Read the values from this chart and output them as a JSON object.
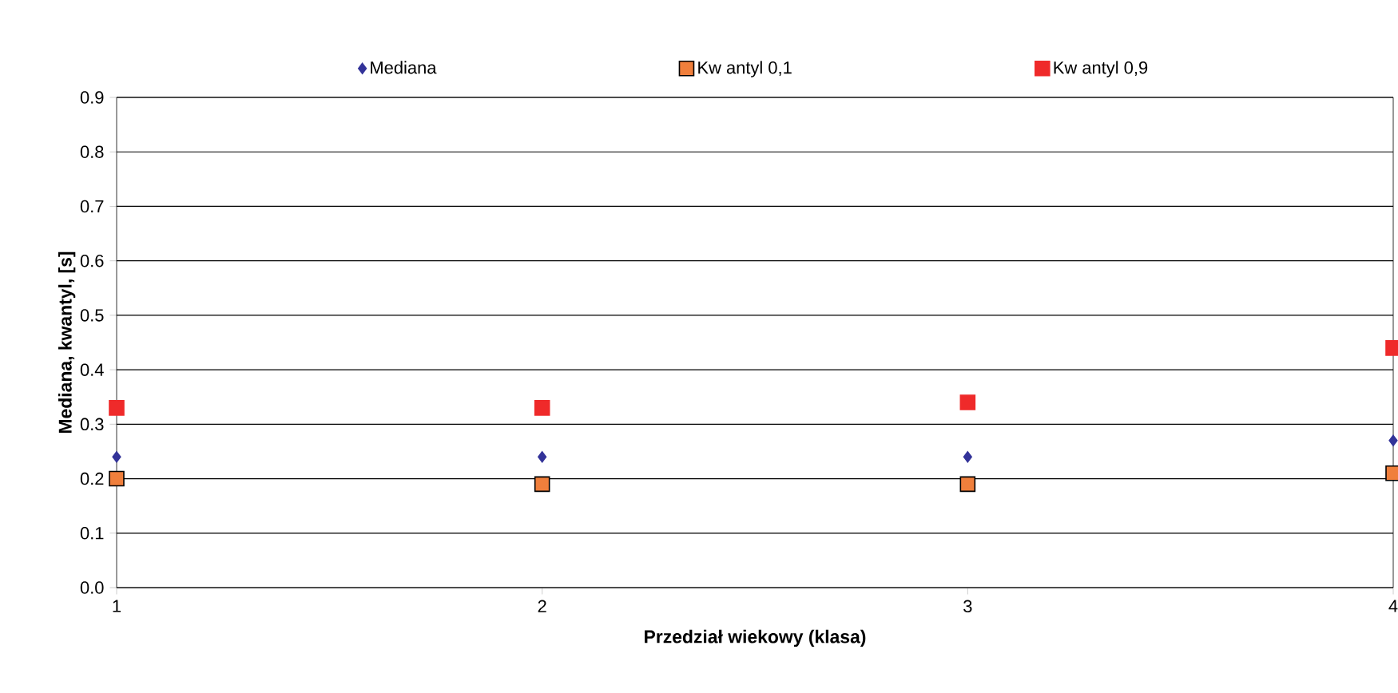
{
  "chart_data": {
    "type": "scatter",
    "xlabel": "Przedział wiekowy (klasa)",
    "ylabel": "Mediana, kwantyl, [s]",
    "x": [
      1,
      2,
      3,
      4
    ],
    "xlim": [
      1,
      4
    ],
    "xticks": [
      1,
      2,
      3,
      4
    ],
    "ylim": [
      0,
      0.9
    ],
    "yticks": [
      {
        "value": 0,
        "label": "0.0"
      },
      0.1,
      0.2,
      0.3,
      0.4,
      0.5,
      0.6,
      0.7,
      0.8,
      0.9
    ],
    "grid": "y",
    "legend": "top",
    "series": [
      {
        "name": "Mediana",
        "color": "#333399",
        "marker": "diamond",
        "values": [
          0.24,
          0.24,
          0.24,
          0.27
        ]
      },
      {
        "name": "Kw antyl 0,1",
        "color": "#f07f3c",
        "marker": "square",
        "values": [
          0.2,
          0.19,
          0.19,
          0.21
        ]
      },
      {
        "name": "Kw antyl 0,9",
        "color": "#ef2a2a",
        "marker": "square",
        "values": [
          0.33,
          0.33,
          0.34,
          0.44
        ]
      }
    ]
  }
}
